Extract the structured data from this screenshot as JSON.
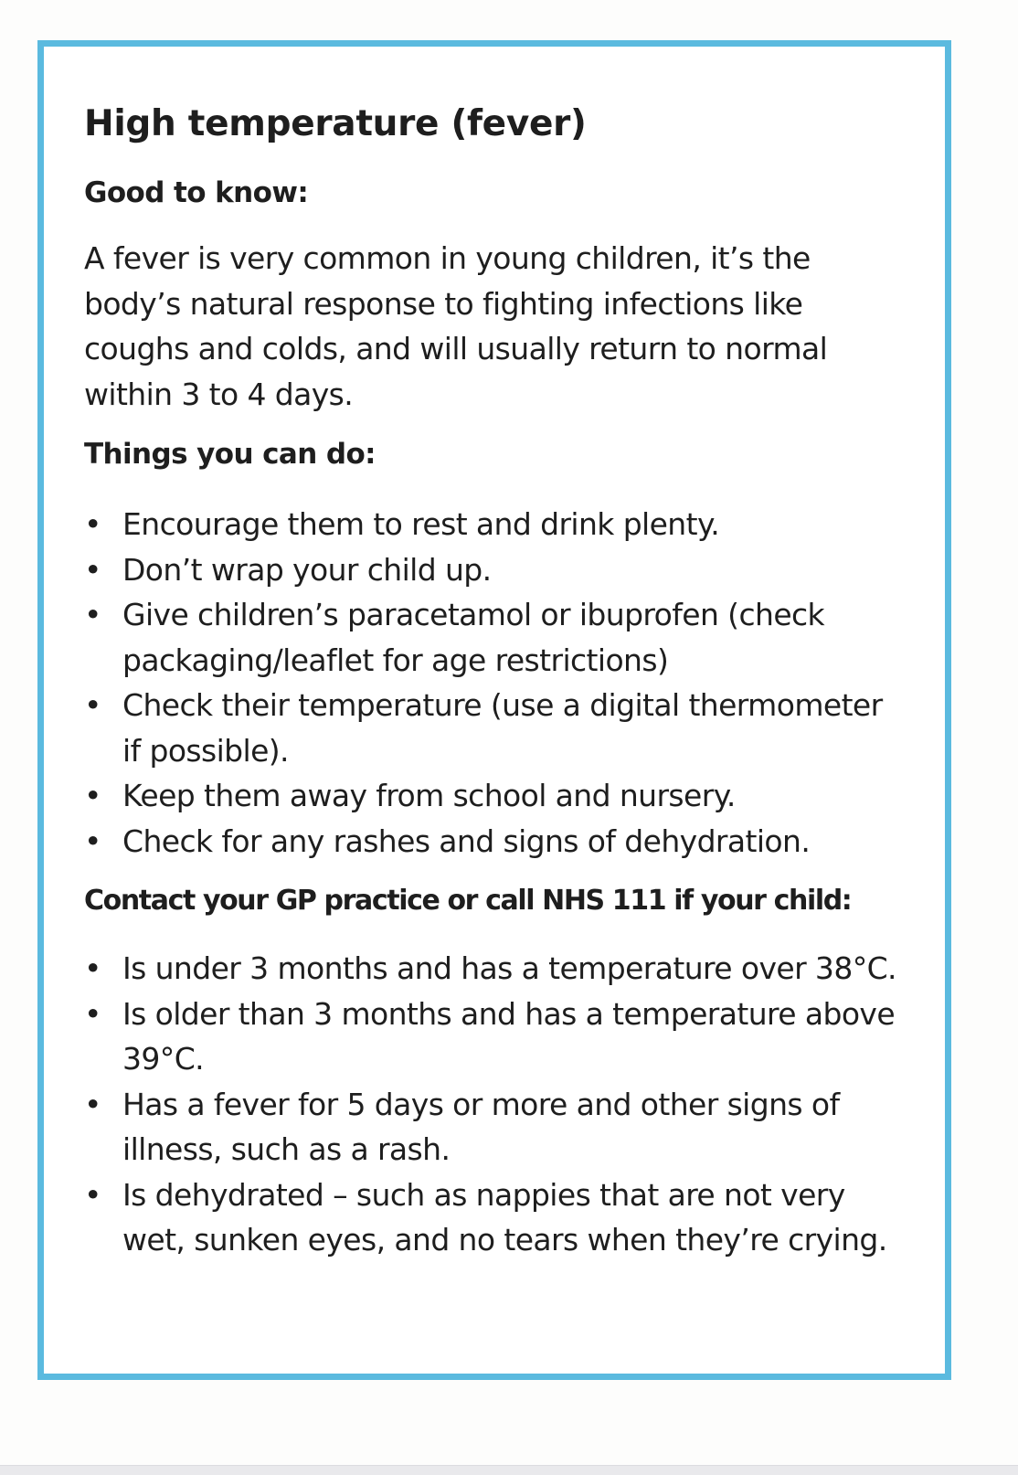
{
  "title": "High temperature (fever)",
  "good_to_know": {
    "heading": "Good to know:",
    "text": "A fever is very common in young children, it’s the body’s natural response to fighting infections like coughs and colds, and will usually return to normal within 3 to 4 days."
  },
  "things_you_can_do": {
    "heading": "Things you can do:",
    "items": [
      "Encourage them to rest and drink plenty.",
      "Don’t wrap your child up.",
      "Give children’s paracetamol or ibuprofen (check packaging/leaflet for age restrictions)",
      "Check their temperature (use a digital thermometer if possible).",
      "Keep them away from school and nursery.",
      "Check for any rashes and signs of dehydration."
    ]
  },
  "contact": {
    "heading": "Contact your GP practice or call NHS 111 if your child:",
    "items": [
      "Is under 3 months and has a temperature over 38°C.",
      "Is older than 3 months and has a temperature above 39°C.",
      "Has a fever for 5 days or more and other signs of illness, such as a rash.",
      "Is dehydrated – such as nappies that are not very wet, sunken eyes, and no tears when they’re crying."
    ]
  },
  "colors": {
    "border": "#5bbadf",
    "text": "#1e1e1e"
  }
}
